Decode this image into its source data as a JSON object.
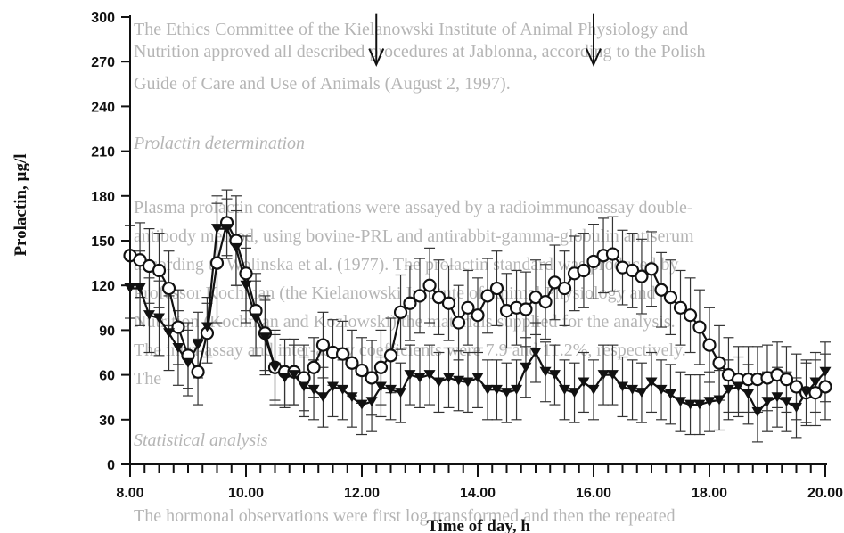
{
  "background_text": [
    "The Ethics Committee of the Kielanowski Institute of Animal Physiology and",
    "Nutrition approved all described procedures at Jablonna, according to the Polish",
    "Guide of Care and Use of Animals (August 2, 1997).",
    "Prolactin determination",
    "Plasma prolactin concentrations were assayed by a radioimmunoassay double-",
    "antibody method, using bovine-PRL and antirabbit-gamma-globulin antiserum",
    "according to Wolinska et al. (1977). The prolactin standard was produced by",
    "Professor Kochman (the Kielanowski Institute of Animal Physiology and",
    "Nutrition (Kochman and Kozlowski) the materials supplied for the analysis.",
    "The intra-assay and inter-assay coefficients were 7.9 and 11.2%, respectively.",
    "The",
    "Statistical analysis",
    "The hormonal observations were first log transformed and then the repeated"
  ],
  "chart_data": {
    "type": "line",
    "title": "",
    "xlabel": "Time of day, h",
    "ylabel": "Prolactin, µg/l",
    "xlim": [
      8.0,
      20.0
    ],
    "ylim": [
      0,
      300
    ],
    "x_tick_labels": [
      "8.00",
      "10.00",
      "12.00",
      "14.00",
      "16.00",
      "18.00",
      "20.00"
    ],
    "x_ticks": [
      8,
      10,
      12,
      14,
      16,
      18,
      20
    ],
    "y_ticks": [
      0,
      30,
      60,
      90,
      120,
      150,
      180,
      210,
      240,
      270,
      300
    ],
    "minor_x_step": 0.25,
    "grid": false,
    "legend": "none",
    "annotations": [
      {
        "type": "arrow-down",
        "x": 12.25,
        "y_top": 302,
        "y_bottom": 268
      },
      {
        "type": "arrow-down",
        "x": 16.0,
        "y_top": 302,
        "y_bottom": 268
      }
    ],
    "series": [
      {
        "marker": "open-circle",
        "color": "#111111",
        "points": [
          [
            8.0,
            140,
            20
          ],
          [
            8.17,
            137,
            25
          ],
          [
            8.33,
            133,
            25
          ],
          [
            8.5,
            130,
            25
          ],
          [
            8.67,
            118,
            25
          ],
          [
            8.83,
            92,
            25
          ],
          [
            9.0,
            73,
            22
          ],
          [
            9.17,
            62,
            22
          ],
          [
            9.33,
            88,
            20
          ],
          [
            9.5,
            135,
            40
          ],
          [
            9.67,
            162,
            22
          ],
          [
            9.83,
            150,
            30
          ],
          [
            10.0,
            128,
            25
          ],
          [
            10.17,
            103,
            25
          ],
          [
            10.33,
            88,
            25
          ],
          [
            10.5,
            65,
            25
          ],
          [
            10.67,
            62,
            22
          ],
          [
            10.83,
            62,
            22
          ],
          [
            11.0,
            58,
            22
          ],
          [
            11.17,
            65,
            20
          ],
          [
            11.33,
            80,
            22
          ],
          [
            11.5,
            75,
            22
          ],
          [
            11.67,
            74,
            22
          ],
          [
            11.83,
            68,
            22
          ],
          [
            12.0,
            63,
            22
          ],
          [
            12.17,
            58,
            25
          ],
          [
            12.33,
            65,
            25
          ],
          [
            12.5,
            73,
            25
          ],
          [
            12.67,
            102,
            25
          ],
          [
            12.83,
            108,
            25
          ],
          [
            13.0,
            113,
            25
          ],
          [
            13.17,
            120,
            25
          ],
          [
            13.33,
            112,
            25
          ],
          [
            13.5,
            108,
            25
          ],
          [
            13.67,
            95,
            25
          ],
          [
            13.83,
            105,
            25
          ],
          [
            14.0,
            100,
            25
          ],
          [
            14.17,
            113,
            25
          ],
          [
            14.33,
            118,
            25
          ],
          [
            14.5,
            103,
            25
          ],
          [
            14.67,
            105,
            25
          ],
          [
            14.83,
            104,
            25
          ],
          [
            15.0,
            112,
            25
          ],
          [
            15.17,
            109,
            25
          ],
          [
            15.33,
            122,
            25
          ],
          [
            15.5,
            118,
            25
          ],
          [
            15.67,
            128,
            25
          ],
          [
            15.83,
            130,
            25
          ],
          [
            16.0,
            136,
            25
          ],
          [
            16.17,
            140,
            25
          ],
          [
            16.33,
            141,
            25
          ],
          [
            16.5,
            132,
            25
          ],
          [
            16.67,
            130,
            25
          ],
          [
            16.83,
            126,
            25
          ],
          [
            17.0,
            131,
            25
          ],
          [
            17.17,
            117,
            25
          ],
          [
            17.33,
            112,
            25
          ],
          [
            17.5,
            105,
            25
          ],
          [
            17.67,
            100,
            25
          ],
          [
            17.83,
            92,
            25
          ],
          [
            18.0,
            80,
            25
          ],
          [
            18.17,
            68,
            25
          ],
          [
            18.33,
            60,
            25
          ],
          [
            18.5,
            57,
            22
          ],
          [
            18.67,
            57,
            22
          ],
          [
            18.83,
            57,
            22
          ],
          [
            19.0,
            58,
            22
          ],
          [
            19.17,
            60,
            22
          ],
          [
            19.33,
            57,
            22
          ],
          [
            19.5,
            52,
            22
          ],
          [
            19.67,
            48,
            22
          ],
          [
            19.83,
            48,
            22
          ],
          [
            20.0,
            52,
            22
          ]
        ]
      },
      {
        "marker": "filled-triangle-down",
        "color": "#111111",
        "points": [
          [
            8.0,
            118,
            20
          ],
          [
            8.17,
            118,
            25
          ],
          [
            8.33,
            100,
            25
          ],
          [
            8.5,
            98,
            25
          ],
          [
            8.67,
            88,
            25
          ],
          [
            8.83,
            78,
            25
          ],
          [
            9.0,
            68,
            22
          ],
          [
            9.17,
            80,
            22
          ],
          [
            9.33,
            92,
            20
          ],
          [
            9.5,
            158,
            22
          ],
          [
            9.67,
            158,
            20
          ],
          [
            9.83,
            145,
            25
          ],
          [
            10.0,
            120,
            25
          ],
          [
            10.17,
            98,
            25
          ],
          [
            10.33,
            85,
            25
          ],
          [
            10.5,
            65,
            22
          ],
          [
            10.67,
            58,
            20
          ],
          [
            10.83,
            60,
            20
          ],
          [
            11.0,
            52,
            20
          ],
          [
            11.17,
            50,
            20
          ],
          [
            11.33,
            45,
            20
          ],
          [
            11.5,
            52,
            20
          ],
          [
            11.67,
            50,
            20
          ],
          [
            11.83,
            45,
            20
          ],
          [
            12.0,
            40,
            20
          ],
          [
            12.17,
            42,
            20
          ],
          [
            12.33,
            52,
            20
          ],
          [
            12.5,
            50,
            20
          ],
          [
            12.67,
            48,
            20
          ],
          [
            12.83,
            60,
            20
          ],
          [
            13.0,
            58,
            20
          ],
          [
            13.17,
            60,
            20
          ],
          [
            13.33,
            55,
            20
          ],
          [
            13.5,
            58,
            20
          ],
          [
            13.67,
            56,
            20
          ],
          [
            13.83,
            55,
            20
          ],
          [
            14.0,
            58,
            20
          ],
          [
            14.17,
            50,
            20
          ],
          [
            14.33,
            50,
            20
          ],
          [
            14.5,
            48,
            20
          ],
          [
            14.67,
            50,
            20
          ],
          [
            14.83,
            65,
            20
          ],
          [
            15.0,
            75,
            20
          ],
          [
            15.17,
            62,
            20
          ],
          [
            15.33,
            60,
            20
          ],
          [
            15.5,
            50,
            20
          ],
          [
            15.67,
            48,
            20
          ],
          [
            15.83,
            55,
            20
          ],
          [
            16.0,
            50,
            20
          ],
          [
            16.17,
            60,
            20
          ],
          [
            16.33,
            60,
            20
          ],
          [
            16.5,
            52,
            20
          ],
          [
            16.67,
            50,
            20
          ],
          [
            16.83,
            48,
            20
          ],
          [
            17.0,
            55,
            20
          ],
          [
            17.17,
            50,
            20
          ],
          [
            17.33,
            47,
            20
          ],
          [
            17.5,
            42,
            20
          ],
          [
            17.67,
            40,
            20
          ],
          [
            17.83,
            40,
            20
          ],
          [
            18.0,
            42,
            20
          ],
          [
            18.17,
            43,
            20
          ],
          [
            18.33,
            50,
            20
          ],
          [
            18.5,
            52,
            20
          ],
          [
            18.67,
            47,
            20
          ],
          [
            18.83,
            35,
            20
          ],
          [
            19.0,
            42,
            20
          ],
          [
            19.17,
            45,
            20
          ],
          [
            19.33,
            42,
            20
          ],
          [
            19.5,
            38,
            20
          ],
          [
            19.67,
            48,
            20
          ],
          [
            19.83,
            55,
            20
          ],
          [
            20.0,
            62,
            20
          ]
        ]
      }
    ]
  }
}
